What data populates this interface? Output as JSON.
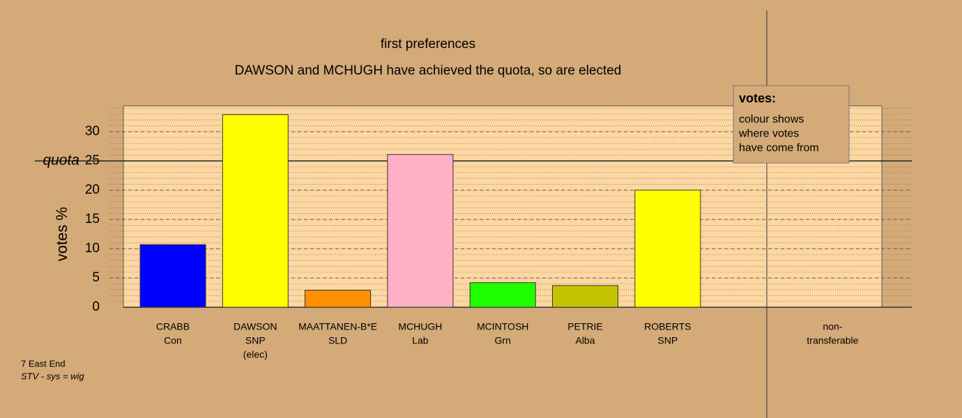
{
  "chart_data": {
    "type": "bar",
    "title": "first preferences",
    "subtitle": "DAWSON and MCHUGH have achieved the quota, so are elected",
    "y_label": "votes %",
    "categories": [
      [
        "CRABB",
        "Con"
      ],
      [
        "DAWSON",
        "SNP",
        "(elec)"
      ],
      [
        "MAATTANEN-B*E",
        "SLD"
      ],
      [
        "MCHUGH",
        "Lab"
      ],
      [
        "MCINTOSH",
        "Grn"
      ],
      [
        "PETRIE",
        "Alba"
      ],
      [
        "ROBERTS",
        "SNP"
      ],
      null,
      [
        "non-",
        "transferable"
      ]
    ],
    "values": [
      10.7,
      32.9,
      2.9,
      26.1,
      4.2,
      3.7,
      20.0,
      null,
      null
    ],
    "colors": [
      "#0000ff",
      "#ffff00",
      "#ff9000",
      "#ffb0c4",
      "#20ff00",
      "#c4c400",
      "#ffff00",
      null,
      null
    ],
    "ylim": [
      0,
      34.4
    ],
    "yticks": [
      0,
      5,
      10,
      15,
      20,
      25,
      30
    ],
    "grid": true,
    "minor_step": 1,
    "quota": {
      "label": "quota",
      "value": 25
    },
    "legend": {
      "title": "votes:",
      "lines": [
        "colour shows",
        "where votes",
        "have come from"
      ]
    },
    "notes": [
      "7 East End",
      "STV - sys = wig"
    ]
  }
}
